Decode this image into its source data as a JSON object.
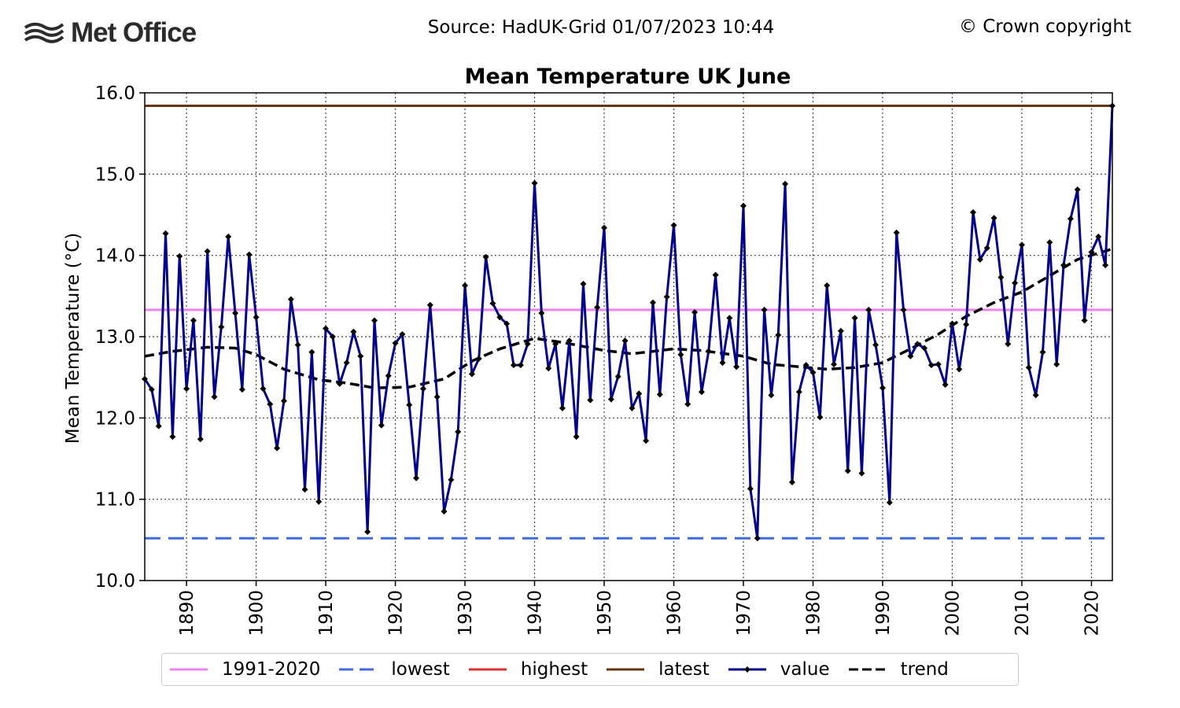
{
  "header": {
    "source": "Source: HadUK-Grid 01/07/2023 10:44",
    "copyright": "© Crown copyright",
    "logo_text": "Met Office"
  },
  "legend": [
    {
      "label": "1991-2020",
      "color": "#ee82ee",
      "style": "solid"
    },
    {
      "label": "lowest",
      "color": "#4169e1",
      "style": "dashed"
    },
    {
      "label": "highest",
      "color": "#e0302f",
      "style": "solid"
    },
    {
      "label": "latest",
      "color": "#6b3410",
      "style": "solid"
    },
    {
      "label": "value",
      "color": "#00008b",
      "style": "marker"
    },
    {
      "label": "trend",
      "color": "#000000",
      "style": "dashed"
    }
  ],
  "chart_data": {
    "type": "line",
    "title": "Mean Temperature UK June",
    "ylabel": "Mean Temperature (°C)",
    "xlabel": "",
    "xlim": [
      1884,
      2023
    ],
    "ylim": [
      10.0,
      16.0
    ],
    "yticks": [
      "10.0",
      "11.0",
      "12.0",
      "13.0",
      "14.0",
      "15.0",
      "16.0"
    ],
    "xticks": [
      "1890",
      "1900",
      "1910",
      "1920",
      "1930",
      "1940",
      "1950",
      "1960",
      "1970",
      "1980",
      "1990",
      "2000",
      "2010",
      "2020"
    ],
    "grid": true,
    "legend_position": "bottom",
    "reference_lines": {
      "1991-2020": 13.33,
      "lowest": 10.52,
      "latest": 15.84
    },
    "series": [
      {
        "name": "value",
        "x_start": 1884,
        "values": [
          12.48,
          12.35,
          11.9,
          14.27,
          11.77,
          13.99,
          12.36,
          13.2,
          11.74,
          14.05,
          12.26,
          13.12,
          14.23,
          13.29,
          12.35,
          14.01,
          13.24,
          12.36,
          12.17,
          11.63,
          12.21,
          13.46,
          12.9,
          11.12,
          12.81,
          10.97,
          13.1,
          13.0,
          12.42,
          12.68,
          13.06,
          12.76,
          10.6,
          13.2,
          11.91,
          12.52,
          12.92,
          13.03,
          12.16,
          11.26,
          12.36,
          13.39,
          12.26,
          10.85,
          11.24,
          11.83,
          13.63,
          12.54,
          12.73,
          13.98,
          13.41,
          13.24,
          13.16,
          12.65,
          12.65,
          12.91,
          14.89,
          13.29,
          12.61,
          12.91,
          12.12,
          12.95,
          11.77,
          13.65,
          12.22,
          13.36,
          14.34,
          12.23,
          12.51,
          12.95,
          12.12,
          12.3,
          11.72,
          13.42,
          12.29,
          13.49,
          14.37,
          12.78,
          12.17,
          13.3,
          12.32,
          12.82,
          13.76,
          12.68,
          13.23,
          12.63,
          14.61,
          11.13,
          10.52,
          13.33,
          12.28,
          13.02,
          14.88,
          11.21,
          12.32,
          12.65,
          12.56,
          12.01,
          13.63,
          12.66,
          13.07,
          11.35,
          13.23,
          11.32,
          13.33,
          12.9,
          12.37,
          10.96,
          14.28,
          13.33,
          12.76,
          12.91,
          12.86,
          12.65,
          12.66,
          12.41,
          13.16,
          12.6,
          13.15,
          14.53,
          13.95,
          14.09,
          14.46,
          13.73,
          12.91,
          13.66,
          14.13,
          12.62,
          12.28,
          12.81,
          14.16,
          12.66,
          13.88,
          14.45,
          14.81,
          13.2,
          14.04,
          14.23,
          13.88,
          15.84
        ]
      },
      {
        "name": "trend",
        "points": [
          [
            1884,
            12.76
          ],
          [
            1888,
            12.82
          ],
          [
            1893,
            12.87
          ],
          [
            1897,
            12.86
          ],
          [
            1900,
            12.78
          ],
          [
            1904,
            12.6
          ],
          [
            1909,
            12.47
          ],
          [
            1913,
            12.43
          ],
          [
            1917,
            12.37
          ],
          [
            1922,
            12.38
          ],
          [
            1927,
            12.48
          ],
          [
            1931,
            12.7
          ],
          [
            1935,
            12.85
          ],
          [
            1940,
            12.98
          ],
          [
            1944,
            12.93
          ],
          [
            1950,
            12.83
          ],
          [
            1954,
            12.79
          ],
          [
            1960,
            12.85
          ],
          [
            1964,
            12.83
          ],
          [
            1970,
            12.76
          ],
          [
            1974,
            12.66
          ],
          [
            1978,
            12.63
          ],
          [
            1982,
            12.6
          ],
          [
            1986,
            12.62
          ],
          [
            1990,
            12.68
          ],
          [
            1994,
            12.85
          ],
          [
            1998,
            13.03
          ],
          [
            2002,
            13.25
          ],
          [
            2006,
            13.42
          ],
          [
            2010,
            13.55
          ],
          [
            2014,
            13.75
          ],
          [
            2018,
            13.95
          ],
          [
            2023,
            14.08
          ]
        ]
      }
    ]
  }
}
